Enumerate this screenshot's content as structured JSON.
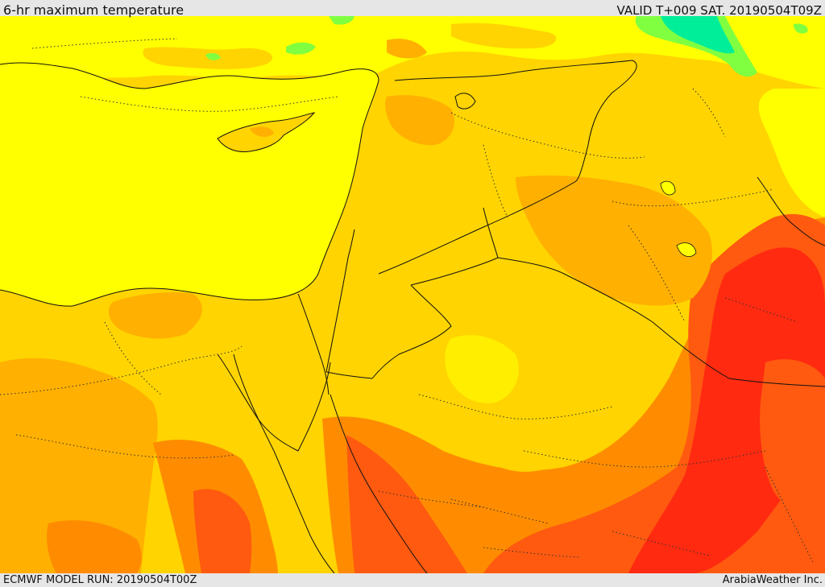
{
  "header": {
    "title": "6-hr maximum temperature",
    "valid": "VALID T+009 SAT. 20190504T09Z"
  },
  "footer": {
    "model_run": "ECMWF MODEL RUN: 20190504T00Z",
    "credit": "ArabiaWeather Inc."
  },
  "palette": {
    "yellow": "#ffff00",
    "gold": "#ffd400",
    "amber": "#ffb000",
    "orange": "#ff8c00",
    "red_orange": "#ff5a10",
    "red": "#ff2a10",
    "green": "#80ff40",
    "cyan": "#00ee99"
  }
}
